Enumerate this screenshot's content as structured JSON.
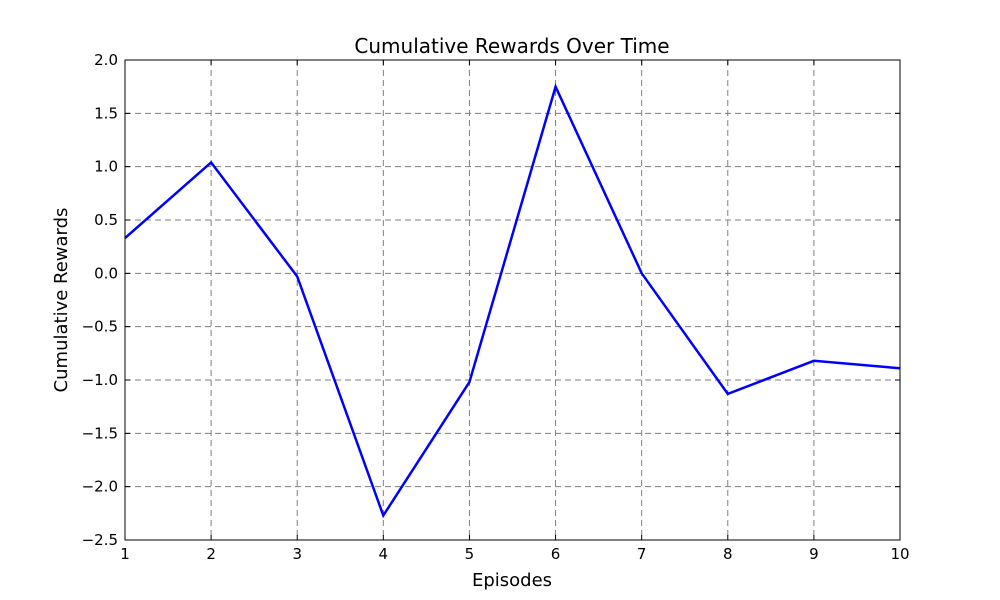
{
  "chart_data": {
    "type": "line",
    "title": "Cumulative Rewards Over Time",
    "xlabel": "Episodes",
    "ylabel": "Cumulative Rewards",
    "xlim": [
      1,
      10
    ],
    "ylim": [
      -2.5,
      2.0
    ],
    "x_ticks": [
      1,
      2,
      3,
      4,
      5,
      6,
      7,
      8,
      9,
      10
    ],
    "x_tick_labels": [
      "1",
      "2",
      "3",
      "4",
      "5",
      "6",
      "7",
      "8",
      "9",
      "10"
    ],
    "y_ticks": [
      -2.5,
      -2.0,
      -1.5,
      -1.0,
      -0.5,
      0.0,
      0.5,
      1.0,
      1.5,
      2.0
    ],
    "y_tick_labels": [
      "−2.5",
      "−2.0",
      "−1.5",
      "−1.0",
      "−0.5",
      "0.0",
      "0.5",
      "1.0",
      "1.5",
      "2.0"
    ],
    "grid": true,
    "series": [
      {
        "color": "#0000ff",
        "x": [
          1,
          2,
          3,
          4,
          5,
          6,
          7,
          8,
          9,
          10
        ],
        "y": [
          0.33,
          1.04,
          -0.03,
          -2.27,
          -1.02,
          1.75,
          0.0,
          -1.13,
          -0.82,
          -0.89
        ]
      }
    ]
  }
}
